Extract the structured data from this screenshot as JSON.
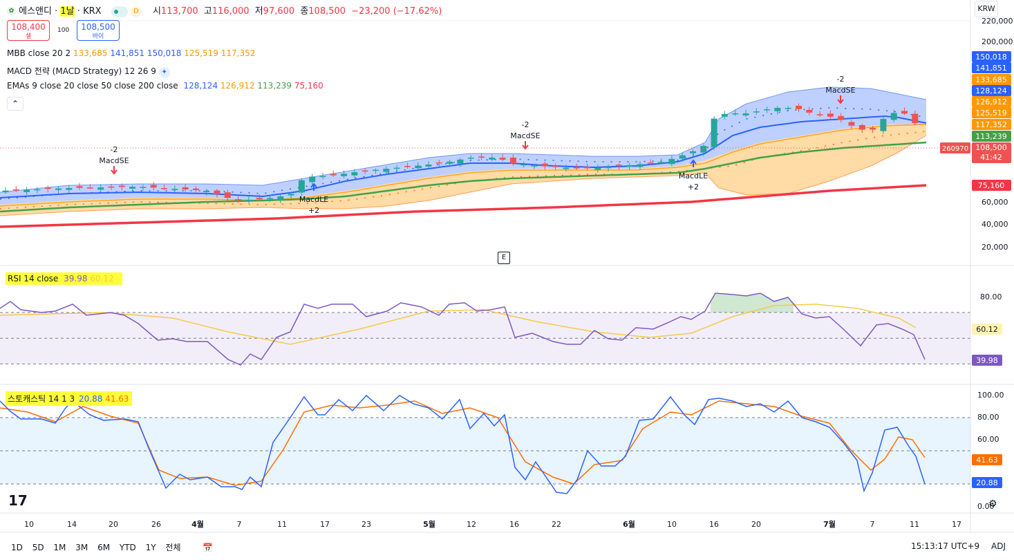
{
  "header": {
    "symbol": "에스앤디",
    "interval": "1날",
    "exchange": "KRX",
    "badge": "D",
    "open_label": "시",
    "open": "113,700",
    "high_label": "고",
    "high": "116,000",
    "low_label": "저",
    "low": "97,600",
    "close_label": "종",
    "close": "108,500",
    "change": "−23,200 (−17.62%)",
    "currency": "KRW"
  },
  "trade": {
    "sell_price": "108,400",
    "sell_label": "셀",
    "spread": "100",
    "buy_price": "108,500",
    "buy_label": "바이"
  },
  "legends": {
    "mbb_name": "MBB close 20 2",
    "mbb_values": [
      "133,685",
      "141,851",
      "150,018",
      "125,519",
      "117,352"
    ],
    "macd_name": "MACD 전략 (MACD Strategy) 12 26 9",
    "ema_name": "EMAs 9 close 20 close 50 close 200 close",
    "ema_values": [
      "128,124",
      "126,912",
      "113,239",
      "75,160"
    ],
    "rsi_name": "RSI 14 close",
    "rsi_values": [
      "39.98",
      "60.12"
    ],
    "stoch_name": "스토캐스틱 14 1 3",
    "stoch_values": [
      "20.88",
      "41.63"
    ]
  },
  "colors": {
    "up": "#26a69a",
    "down": "#ef5350",
    "bb_upper": "#2962ff",
    "bb_basis": "#ff6d00",
    "ema9": "#2962ff",
    "ema20": "#ff9800",
    "ema50": "#43a047",
    "ema200": "#f23645",
    "rsi": "#7e57c2",
    "rsi_ma": "#f7c948",
    "stoch_k": "#2962ff",
    "stoch_d": "#ff6d00"
  },
  "price_axis": {
    "ticks": [
      "220,000",
      "200,000",
      "60,000",
      "40,000",
      "20,000"
    ],
    "last_price": "108,500",
    "countdown": "41:42",
    "volume_tag": "260970"
  },
  "price_tags": [
    {
      "text": "150,018",
      "color": "#2962ff"
    },
    {
      "text": "141,851",
      "color": "#2962ff"
    },
    {
      "text": "133,685",
      "color": "#ff9800"
    },
    {
      "text": "128,124",
      "color": "#2962ff"
    },
    {
      "text": "126,912",
      "color": "#ff9800"
    },
    {
      "text": "125,519",
      "color": "#ff9800"
    },
    {
      "text": "117,352",
      "color": "#ff9800"
    },
    {
      "text": "113,239",
      "color": "#43a047"
    },
    {
      "text": "75,160",
      "color": "#f23645"
    }
  ],
  "rsi_axis": {
    "ticks": [
      "80.00"
    ],
    "tags": [
      "60.12",
      "39.98"
    ]
  },
  "stoch_axis": {
    "ticks": [
      "100.00",
      "80.00",
      "60.00",
      "0.00"
    ],
    "tags": [
      "41.63",
      "20.88"
    ]
  },
  "strategy_labels": [
    {
      "text": "MacdSE",
      "qty": "-2"
    },
    {
      "text": "MacdLE",
      "qty": "+2"
    },
    {
      "text": "MacdSE",
      "qty": "-2"
    },
    {
      "text": "MacdLE",
      "qty": "+2"
    },
    {
      "text": "MacdSE",
      "qty": "-2"
    }
  ],
  "x_axis": [
    "10",
    "14",
    "20",
    "26",
    "4월",
    "7",
    "11",
    "17",
    "23",
    "5월",
    "12",
    "16",
    "22",
    "6월",
    "10",
    "16",
    "20",
    "7월",
    "7",
    "11",
    "17"
  ],
  "earnings_marker": "E",
  "bottom_bar": {
    "ranges": [
      "1D",
      "5D",
      "1M",
      "3M",
      "6M",
      "YTD",
      "1Y",
      "전체"
    ],
    "time": "15:13:17 UTC+9",
    "adj": "ADJ"
  },
  "chart_data": {
    "type": "candlestick",
    "panes": [
      "price",
      "rsi",
      "stochastic"
    ],
    "price": {
      "last": {
        "open": 113700,
        "high": 116000,
        "low": 97600,
        "close": 108500
      },
      "mbb": {
        "basis": 133685,
        "upper": 141851,
        "upper2": 150018,
        "lower": 125519,
        "lower2": 117352
      },
      "ema": {
        "ema9": 128124,
        "ema20": 126912,
        "ema50": 113239,
        "ema200": 75160
      }
    },
    "rsi": {
      "value": 39.98,
      "ma": 60.12,
      "levels": [
        70,
        50,
        30
      ]
    },
    "stochastic": {
      "k": 20.88,
      "d": 41.63,
      "levels": [
        80,
        50,
        20
      ]
    }
  }
}
